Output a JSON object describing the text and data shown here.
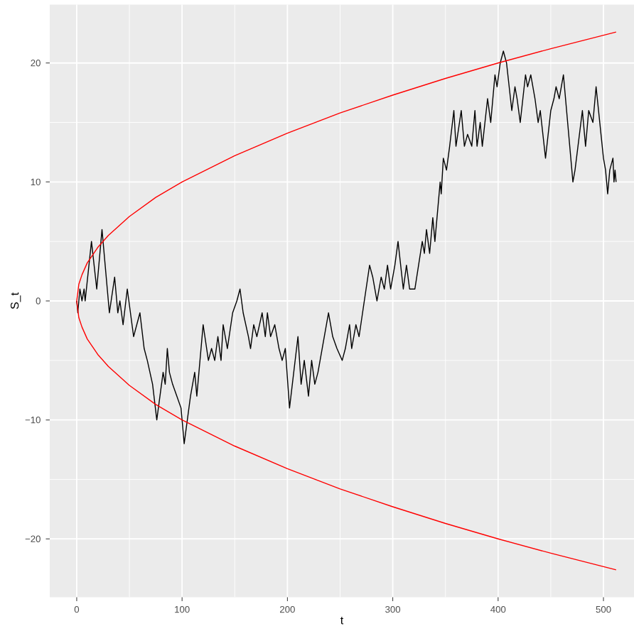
{
  "chart_data": {
    "type": "line",
    "xlabel": "t",
    "ylabel": "S_t",
    "xlim": [
      -25.6,
      529
    ],
    "ylim": [
      -24.9,
      24.9
    ],
    "xticks": [
      0,
      100,
      200,
      300,
      400,
      500
    ],
    "yticks": [
      {
        "value": -20,
        "label": "−20"
      },
      {
        "value": -10,
        "label": "−10"
      },
      0,
      10,
      20
    ],
    "grid": true,
    "line_style": "solid",
    "series": [
      {
        "color": "#000000",
        "x": [
          0,
          1,
          3,
          5,
          7,
          8,
          14,
          19,
          24,
          31,
          36,
          39,
          41,
          44,
          48,
          54,
          60,
          64,
          67,
          72,
          76,
          82,
          84,
          86,
          88,
          91,
          95,
          99,
          102,
          105,
          108,
          112,
          114,
          120,
          125,
          128,
          131,
          134,
          137,
          139,
          143,
          148,
          152,
          155,
          158,
          163,
          165,
          168,
          171,
          176,
          179,
          181,
          184,
          188,
          192,
          195,
          198,
          202,
          210,
          213,
          216,
          220,
          223,
          226,
          229,
          231,
          239,
          243,
          247,
          252,
          255,
          259,
          261,
          265,
          268,
          273,
          278,
          281,
          285,
          289,
          292,
          295,
          298,
          302,
          305,
          310,
          313,
          316,
          321,
          328,
          330,
          332,
          335,
          338,
          340,
          345,
          346,
          348,
          351,
          354,
          358,
          360,
          365,
          368,
          371,
          375,
          378,
          380,
          383,
          385,
          390,
          393,
          397,
          399,
          402,
          405,
          408,
          413,
          416,
          418,
          421,
          426,
          428,
          431,
          435,
          438,
          440,
          445,
          450,
          453,
          455,
          458,
          462,
          471,
          473,
          480,
          483,
          486,
          490,
          493,
          500,
          502,
          504,
          506,
          509,
          510,
          511,
          512
        ],
        "values": [
          0,
          -1,
          1,
          0,
          1,
          0,
          5,
          1,
          6,
          -1,
          2,
          -1,
          0,
          -2,
          1,
          -3,
          -1,
          -4,
          -5,
          -7,
          -10,
          -6,
          -7,
          -4,
          -6,
          -7,
          -8,
          -9,
          -12,
          -10,
          -8,
          -6,
          -8,
          -2,
          -5,
          -4,
          -5,
          -3,
          -5,
          -2,
          -4,
          -1,
          0,
          1,
          -1,
          -3,
          -4,
          -2,
          -3,
          -1,
          -3,
          -1,
          -3,
          -2,
          -4,
          -5,
          -4,
          -9,
          -3,
          -7,
          -5,
          -8,
          -5,
          -7,
          -6,
          -5,
          -1,
          -3,
          -4,
          -5,
          -4,
          -2,
          -4,
          -2,
          -3,
          0,
          3,
          2,
          0,
          2,
          1,
          3,
          1,
          3,
          5,
          1,
          3,
          1,
          1,
          5,
          4,
          6,
          4,
          7,
          5,
          10,
          9,
          12,
          11,
          13,
          16,
          13,
          16,
          13,
          14,
          13,
          16,
          13,
          15,
          13,
          17,
          15,
          19,
          18,
          20,
          21,
          20,
          16,
          18,
          17,
          15,
          19,
          18,
          19,
          17,
          15,
          16,
          12,
          16,
          17,
          18,
          17,
          19,
          10,
          11,
          16,
          13,
          16,
          15,
          18,
          12,
          11,
          9,
          11,
          12,
          10,
          11,
          10
        ]
      },
      {
        "color": "#ff0000",
        "x": [
          512,
          450,
          400,
          350,
          300,
          250,
          200,
          150,
          100,
          75,
          50,
          30,
          20,
          10,
          5,
          2,
          0,
          2,
          5,
          10,
          20,
          30,
          50,
          75,
          100,
          150,
          200,
          250,
          300,
          350,
          400,
          450,
          512
        ],
        "values": [
          22.6,
          21.2,
          20,
          18.7,
          17.3,
          15.8,
          14.1,
          12.2,
          10,
          8.7,
          7.1,
          5.5,
          4.5,
          3.2,
          2.2,
          1.4,
          0,
          -1.4,
          -2.2,
          -3.2,
          -4.5,
          -5.5,
          -7.1,
          -8.7,
          -10,
          -12.2,
          -14.1,
          -15.8,
          -17.3,
          -18.7,
          -20,
          -21.2,
          -22.6
        ]
      }
    ]
  }
}
